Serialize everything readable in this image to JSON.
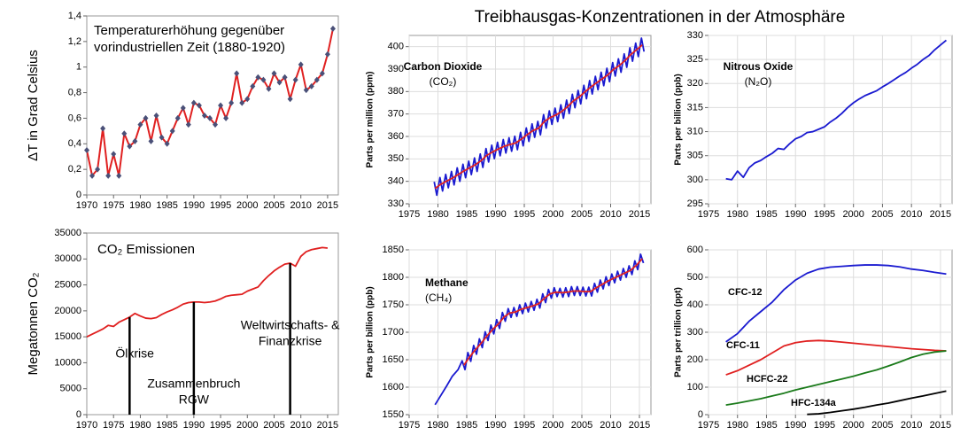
{
  "title": "Treibhausgas-Konzentrationen in der Atmosphäre",
  "chart_data": [
    {
      "type": "line",
      "title": [
        "Temperaturerhöhung gegenüber",
        "vorindustriellen Zeit (1880-1920)"
      ],
      "ylabel": "ΔT in Grad Celsius",
      "xlim": [
        1970,
        2017
      ],
      "xticks": [
        1970,
        1975,
        1980,
        1985,
        1990,
        1995,
        2000,
        2005,
        2010,
        2015
      ],
      "ylim": [
        0,
        1.4
      ],
      "yticks": [
        0,
        {
          "value": 0.2,
          "label": "0,2"
        },
        {
          "value": 0.4,
          "label": "0,4"
        },
        {
          "value": 0.6,
          "label": "0,6"
        },
        {
          "value": 0.8,
          "label": "0,8"
        },
        1,
        {
          "value": 1.2,
          "label": "1,2"
        },
        {
          "value": 1.4,
          "label": "1,4"
        }
      ],
      "grid": false,
      "x": [
        1970,
        1971,
        1972,
        1973,
        1974,
        1975,
        1976,
        1977,
        1978,
        1979,
        1980,
        1981,
        1982,
        1983,
        1984,
        1985,
        1986,
        1987,
        1988,
        1989,
        1990,
        1991,
        1992,
        1993,
        1994,
        1995,
        1996,
        1997,
        1998,
        1999,
        2000,
        2001,
        2002,
        2003,
        2004,
        2005,
        2006,
        2007,
        2008,
        2009,
        2010,
        2011,
        2012,
        2013,
        2014,
        2015,
        2016
      ],
      "series": [
        {
          "color": "#e02020",
          "marker_color": "#4a5078",
          "values": [
            0.35,
            0.15,
            0.2,
            0.52,
            0.15,
            0.32,
            0.15,
            0.48,
            0.38,
            0.42,
            0.55,
            0.6,
            0.42,
            0.62,
            0.45,
            0.4,
            0.5,
            0.6,
            0.68,
            0.55,
            0.72,
            0.7,
            0.62,
            0.6,
            0.55,
            0.7,
            0.6,
            0.72,
            0.95,
            0.72,
            0.75,
            0.85,
            0.92,
            0.9,
            0.83,
            0.95,
            0.88,
            0.92,
            0.75,
            0.9,
            1.02,
            0.82,
            0.85,
            0.9,
            0.95,
            1.1,
            1.3
          ]
        }
      ]
    },
    {
      "type": "line",
      "title": [
        "CO₂ Emissionen"
      ],
      "ylabel": "Megatonnen CO₂",
      "xlim": [
        1970,
        2017
      ],
      "xticks": [
        1970,
        1975,
        1980,
        1985,
        1990,
        1995,
        2000,
        2005,
        2010,
        2015
      ],
      "ylim": [
        0,
        35000
      ],
      "yticks": [
        0,
        5000,
        10000,
        15000,
        20000,
        25000,
        30000,
        35000
      ],
      "grid": false,
      "x": [
        1970,
        1971,
        1972,
        1973,
        1974,
        1975,
        1976,
        1977,
        1978,
        1979,
        1980,
        1981,
        1982,
        1983,
        1984,
        1985,
        1986,
        1987,
        1988,
        1989,
        1990,
        1991,
        1992,
        1993,
        1994,
        1995,
        1996,
        1997,
        1998,
        1999,
        2000,
        2001,
        2002,
        2003,
        2004,
        2005,
        2006,
        2007,
        2008,
        2009,
        2010,
        2011,
        2012,
        2013,
        2014,
        2015
      ],
      "series": [
        {
          "color": "#e02020",
          "values": [
            15000,
            15500,
            16000,
            16500,
            17200,
            17000,
            17800,
            18300,
            18800,
            19500,
            19000,
            18600,
            18500,
            18700,
            19300,
            19800,
            20200,
            20700,
            21300,
            21600,
            21700,
            21700,
            21600,
            21700,
            21900,
            22300,
            22800,
            23000,
            23100,
            23200,
            23800,
            24200,
            24600,
            25800,
            26800,
            27700,
            28400,
            29000,
            29200,
            28600,
            30500,
            31400,
            31800,
            32000,
            32200,
            32100
          ]
        }
      ],
      "annotations": [
        {
          "x": 1978,
          "lines": [
            "Ölkrise"
          ]
        },
        {
          "x": 1990,
          "lines": [
            "Zusammenbruch",
            "RGW"
          ]
        },
        {
          "x": 2008,
          "lines": [
            "Weltwirtschafts- &",
            "Finanzkrise"
          ]
        }
      ]
    },
    {
      "type": "line",
      "label": [
        "Carbon Dioxide",
        "(CO₂)"
      ],
      "label_color": "#1a1ad0",
      "ylabel": "Parts per million (ppm)",
      "xlim": [
        1975,
        2017
      ],
      "xticks": [
        1975,
        1980,
        1985,
        1990,
        1995,
        2000,
        2005,
        2010,
        2015
      ],
      "ylim": [
        330,
        405
      ],
      "yticks": [
        330,
        340,
        350,
        360,
        370,
        380,
        390,
        400
      ],
      "grid": true,
      "series": [
        {
          "color": "#1a1ad0",
          "x": [
            1979.35,
            1979.8,
            1980.35,
            1980.8,
            1981.35,
            1981.8,
            1982.35,
            1982.8,
            1983.35,
            1983.8,
            1984.35,
            1984.8,
            1985.35,
            1985.8,
            1986.35,
            1986.8,
            1987.35,
            1987.8,
            1988.35,
            1988.8,
            1989.35,
            1989.8,
            1990.35,
            1990.8,
            1991.35,
            1991.8,
            1992.35,
            1992.8,
            1993.35,
            1993.8,
            1994.35,
            1994.8,
            1995.35,
            1995.8,
            1996.35,
            1996.8,
            1997.35,
            1997.8,
            1998.35,
            1998.8,
            1999.35,
            1999.8,
            2000.35,
            2000.8,
            2001.35,
            2001.8,
            2002.35,
            2002.8,
            2003.35,
            2003.8,
            2004.35,
            2004.8,
            2005.35,
            2005.8,
            2006.35,
            2006.8,
            2007.35,
            2007.8,
            2008.35,
            2008.8,
            2009.35,
            2009.8,
            2010.35,
            2010.8,
            2011.35,
            2011.8,
            2012.35,
            2012.8,
            2013.35,
            2013.8,
            2014.35,
            2014.8,
            2015.35,
            2015.8
          ],
          "values": [
            339.8,
            333.8,
            341.7,
            335.7,
            343.1,
            337.1,
            344.4,
            338.4,
            346.0,
            340.0,
            347.6,
            341.6,
            349.0,
            343.0,
            350.4,
            344.4,
            352.2,
            346.2,
            354.6,
            348.6,
            356.1,
            350.1,
            357.4,
            351.4,
            358.6,
            352.6,
            359.4,
            353.4,
            360.1,
            354.1,
            361.8,
            355.8,
            363.8,
            357.8,
            365.6,
            359.6,
            366.7,
            360.7,
            369.7,
            363.7,
            371.4,
            365.4,
            372.6,
            366.6,
            374.1,
            368.1,
            376.2,
            370.2,
            378.8,
            372.8,
            380.5,
            374.5,
            382.8,
            376.8,
            384.9,
            378.9,
            386.8,
            380.8,
            388.6,
            382.6,
            390.4,
            384.4,
            392.9,
            386.9,
            394.6,
            388.6,
            396.8,
            390.8,
            399.5,
            393.5,
            401.6,
            395.6,
            403.8,
            397.8
          ]
        },
        {
          "color": "#e02020",
          "x": [
            1979.5,
            1980.5,
            1981.5,
            1982.5,
            1983.5,
            1984.5,
            1985.5,
            1986.5,
            1987.5,
            1988.5,
            1989.5,
            1990.5,
            1991.5,
            1992.5,
            1993.5,
            1994.5,
            1995.5,
            1996.5,
            1997.5,
            1998.5,
            1999.5,
            2000.5,
            2001.5,
            2002.5,
            2003.5,
            2004.5,
            2005.5,
            2006.5,
            2007.5,
            2008.5,
            2009.5,
            2010.5,
            2011.5,
            2012.5,
            2013.5,
            2014.5,
            2015.5
          ],
          "values": [
            336.8,
            338.7,
            340.1,
            341.4,
            343.0,
            344.6,
            346.0,
            347.4,
            349.2,
            351.6,
            353.1,
            354.4,
            355.6,
            356.4,
            357.1,
            358.8,
            360.8,
            362.6,
            363.7,
            366.7,
            368.4,
            369.6,
            371.1,
            373.2,
            375.8,
            377.5,
            379.8,
            381.9,
            383.8,
            385.6,
            387.4,
            389.9,
            391.6,
            393.8,
            396.5,
            398.6,
            400.8
          ]
        }
      ]
    },
    {
      "type": "line",
      "label": [
        "Nitrous Oxide",
        "(N₂O)"
      ],
      "label_color": "#1a1ad0",
      "ylabel": "Parts per billion (ppb)",
      "xlim": [
        1975,
        2017
      ],
      "xticks": [
        1975,
        1980,
        1985,
        1990,
        1995,
        2000,
        2005,
        2010,
        2015
      ],
      "ylim": [
        295,
        330
      ],
      "yticks": [
        295,
        300,
        305,
        310,
        315,
        320,
        325,
        330
      ],
      "grid": true,
      "x": [
        1978,
        1979,
        1980,
        1981,
        1982,
        1983,
        1984,
        1985,
        1986,
        1987,
        1988,
        1989,
        1990,
        1991,
        1992,
        1993,
        1994,
        1995,
        1996,
        1997,
        1998,
        1999,
        2000,
        2001,
        2002,
        2003,
        2004,
        2005,
        2006,
        2007,
        2008,
        2009,
        2010,
        2011,
        2012,
        2013,
        2014,
        2015,
        2016
      ],
      "series": [
        {
          "color": "#1a1ad0",
          "values": [
            300.2,
            300,
            301.8,
            300.5,
            302.5,
            303.5,
            304,
            304.8,
            305.5,
            306.5,
            306.3,
            307.5,
            308.5,
            309,
            309.8,
            310,
            310.5,
            311,
            312,
            312.8,
            313.8,
            315,
            316,
            316.8,
            317.5,
            318,
            318.5,
            319.3,
            320,
            320.8,
            321.6,
            322.3,
            323.2,
            324,
            325,
            325.8,
            327,
            328,
            329
          ]
        }
      ]
    },
    {
      "type": "line",
      "label": [
        "Methane",
        "(CH₄)"
      ],
      "label_color": "#1a1ad0",
      "ylabel": "Parts per billion (ppb)",
      "xlim": [
        1975,
        2017
      ],
      "xticks": [
        1975,
        1980,
        1985,
        1990,
        1995,
        2000,
        2005,
        2010,
        2015
      ],
      "ylim": [
        1550,
        1850
      ],
      "yticks": [
        1550,
        1600,
        1650,
        1700,
        1750,
        1800,
        1850
      ],
      "grid": true,
      "series": [
        {
          "color": "#1a1ad0",
          "x": [
            1979.5,
            1980.5,
            1981.5,
            1982.5,
            1983.5,
            1984.2,
            1984.7,
            1985.2,
            1985.7,
            1986.2,
            1986.7,
            1987.2,
            1987.7,
            1988.2,
            1988.7,
            1989.2,
            1989.7,
            1990.2,
            1990.7,
            1991.2,
            1991.7,
            1992.2,
            1992.7,
            1993.2,
            1993.7,
            1994.2,
            1994.7,
            1995.2,
            1995.7,
            1996.2,
            1996.7,
            1997.2,
            1997.7,
            1998.2,
            1998.7,
            1999.2,
            1999.7,
            2000.2,
            2000.7,
            2001.2,
            2001.7,
            2002.2,
            2002.7,
            2003.2,
            2003.7,
            2004.2,
            2004.7,
            2005.2,
            2005.7,
            2006.2,
            2006.7,
            2007.2,
            2007.7,
            2008.2,
            2008.7,
            2009.2,
            2009.7,
            2010.2,
            2010.7,
            2011.2,
            2011.7,
            2012.2,
            2012.7,
            2013.2,
            2013.7,
            2014.2,
            2014.7,
            2015.2,
            2015.7
          ],
          "values": [
            1568,
            1585,
            1602,
            1620,
            1632,
            1648,
            1632,
            1663,
            1647,
            1676,
            1660,
            1688,
            1672,
            1701,
            1685,
            1713,
            1697,
            1723,
            1707,
            1736,
            1720,
            1743,
            1727,
            1745,
            1729,
            1750,
            1734,
            1753,
            1737,
            1756,
            1740,
            1760,
            1744,
            1770,
            1754,
            1778,
            1762,
            1781,
            1765,
            1780,
            1764,
            1781,
            1765,
            1783,
            1767,
            1783,
            1767,
            1782,
            1766,
            1782,
            1766,
            1789,
            1773,
            1795,
            1779,
            1801,
            1785,
            1806,
            1790,
            1811,
            1795,
            1816,
            1800,
            1821,
            1805,
            1830,
            1814,
            1842,
            1826
          ]
        },
        {
          "color": "#e02020",
          "x": [
            1984.5,
            1985.5,
            1986.5,
            1987.5,
            1988.5,
            1989.5,
            1990.5,
            1991.5,
            1992.5,
            1993.5,
            1994.5,
            1995.5,
            1996.5,
            1997.5,
            1998.5,
            1999.5,
            2000.5,
            2001.5,
            2002.5,
            2003.5,
            2004.5,
            2005.5,
            2006.5,
            2007.5,
            2008.5,
            2009.5,
            2010.5,
            2011.5,
            2012.5,
            2013.5,
            2014.5,
            2015.5
          ],
          "values": [
            1640,
            1655,
            1668,
            1680,
            1693,
            1705,
            1715,
            1728,
            1735,
            1737,
            1742,
            1745,
            1748,
            1752,
            1762,
            1770,
            1773,
            1772,
            1773,
            1775,
            1775,
            1774,
            1774,
            1781,
            1787,
            1793,
            1798,
            1803,
            1808,
            1813,
            1822,
            1834
          ]
        }
      ]
    },
    {
      "type": "line",
      "ylabel": "Parts per trillion (ppt)",
      "xlim": [
        1975,
        2017
      ],
      "xticks": [
        1975,
        1980,
        1985,
        1990,
        1995,
        2000,
        2005,
        2010,
        2015
      ],
      "ylim": [
        0,
        600
      ],
      "yticks": [
        0,
        100,
        200,
        300,
        400,
        500,
        600
      ],
      "grid": true,
      "x": [
        1978,
        1980,
        1982,
        1984,
        1986,
        1988,
        1990,
        1992,
        1994,
        1996,
        1998,
        2000,
        2002,
        2004,
        2006,
        2008,
        2010,
        2012,
        2014,
        2016
      ],
      "series": [
        {
          "name": "CFC-12",
          "color": "#1a1ad0",
          "values": [
            265,
            295,
            340,
            375,
            410,
            455,
            490,
            515,
            530,
            537,
            540,
            543,
            545,
            545,
            543,
            538,
            530,
            525,
            518,
            512
          ]
        },
        {
          "name": "CFC-11",
          "color": "#e02020",
          "values": [
            145,
            160,
            180,
            200,
            225,
            250,
            262,
            268,
            270,
            268,
            264,
            260,
            256,
            252,
            248,
            244,
            240,
            237,
            234,
            232
          ]
        },
        {
          "name": "HCFC-22",
          "color": "#1a7a1a",
          "values": [
            35,
            42,
            50,
            58,
            68,
            78,
            90,
            100,
            110,
            120,
            130,
            140,
            152,
            163,
            177,
            192,
            208,
            220,
            228,
            232
          ]
        },
        {
          "name": "HFC-134a",
          "color": "#000000",
          "values": [
            null,
            null,
            null,
            null,
            null,
            null,
            null,
            1,
            3,
            8,
            14,
            20,
            27,
            35,
            42,
            51,
            60,
            68,
            77,
            86
          ]
        }
      ]
    }
  ]
}
